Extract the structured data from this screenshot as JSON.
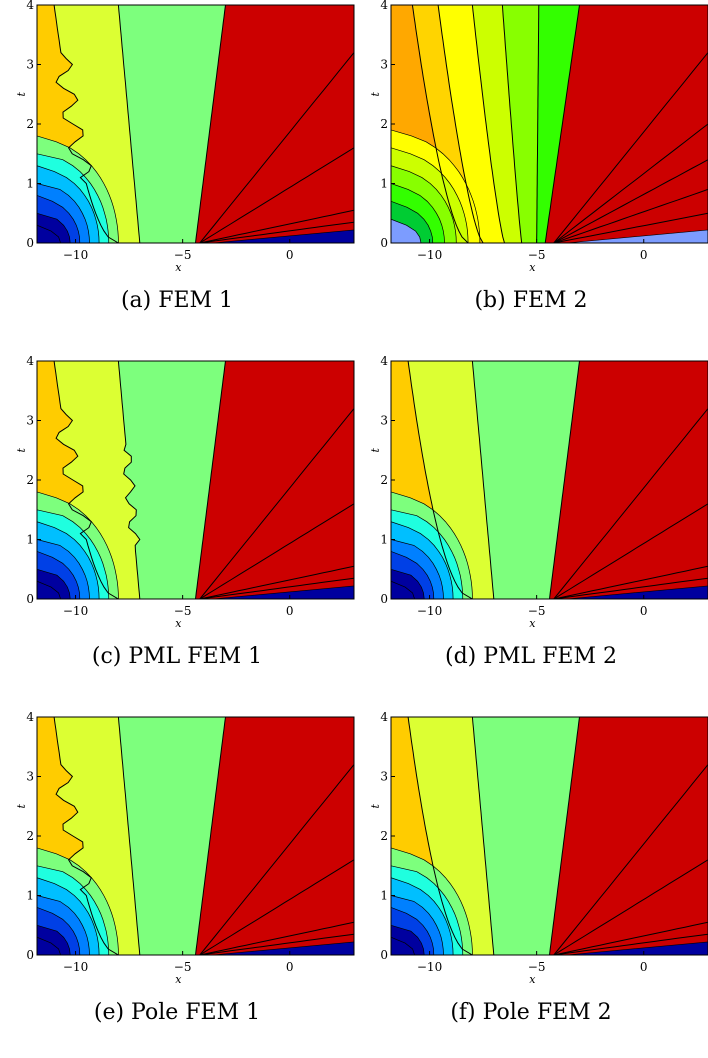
{
  "chart_data": [
    {
      "type": "contour",
      "id": "a",
      "caption": "(a) FEM 1",
      "xlabel": "x",
      "ylabel": "t",
      "xlim": [
        -11.8,
        3
      ],
      "ylim": [
        0,
        4
      ],
      "xticks": [
        {
          "v": -10,
          "label": "−10"
        },
        {
          "v": -5,
          "label": "−5"
        },
        {
          "v": 0,
          "label": "0"
        }
      ],
      "yticks": [
        0,
        1,
        2,
        3,
        4
      ],
      "variant": "fem1"
    },
    {
      "type": "contour",
      "id": "b",
      "caption": "(b) FEM 2",
      "xlabel": "x",
      "ylabel": "t",
      "xlim": [
        -11.8,
        3
      ],
      "ylim": [
        0,
        4
      ],
      "xticks": [
        {
          "v": -10,
          "label": "−10"
        },
        {
          "v": -5,
          "label": "−5"
        },
        {
          "v": 0,
          "label": "0"
        }
      ],
      "yticks": [
        0,
        1,
        2,
        3,
        4
      ],
      "variant": "fem2"
    },
    {
      "type": "contour",
      "id": "c",
      "caption": "(c) PML FEM 1",
      "xlabel": "x",
      "ylabel": "t",
      "xlim": [
        -11.8,
        3
      ],
      "ylim": [
        0,
        4
      ],
      "xticks": [
        {
          "v": -10,
          "label": "−10"
        },
        {
          "v": -5,
          "label": "−5"
        },
        {
          "v": 0,
          "label": "0"
        }
      ],
      "yticks": [
        0,
        1,
        2,
        3,
        4
      ],
      "variant": "pml1"
    },
    {
      "type": "contour",
      "id": "d",
      "caption": "(d) PML FEM 2",
      "xlabel": "x",
      "ylabel": "t",
      "xlim": [
        -11.8,
        3
      ],
      "ylim": [
        0,
        4
      ],
      "xticks": [
        {
          "v": -10,
          "label": "−10"
        },
        {
          "v": -5,
          "label": "−5"
        },
        {
          "v": 0,
          "label": "0"
        }
      ],
      "yticks": [
        0,
        1,
        2,
        3,
        4
      ],
      "variant": "smooth"
    },
    {
      "type": "contour",
      "id": "e",
      "caption": "(e) Pole FEM 1",
      "xlabel": "x",
      "ylabel": "t",
      "xlim": [
        -11.8,
        3
      ],
      "ylim": [
        0,
        4
      ],
      "xticks": [
        {
          "v": -10,
          "label": "−10"
        },
        {
          "v": -5,
          "label": "−5"
        },
        {
          "v": 0,
          "label": "0"
        }
      ],
      "yticks": [
        0,
        1,
        2,
        3,
        4
      ],
      "variant": "fem1"
    },
    {
      "type": "contour",
      "id": "f",
      "caption": "(f) Pole FEM 2",
      "xlabel": "x",
      "ylabel": "t",
      "xlim": [
        -11.8,
        3
      ],
      "ylim": [
        0,
        4
      ],
      "xticks": [
        {
          "v": -10,
          "label": "−10"
        },
        {
          "v": -5,
          "label": "−5"
        },
        {
          "v": 0,
          "label": "0"
        }
      ],
      "yticks": [
        0,
        1,
        2,
        3,
        4
      ],
      "variant": "smooth"
    }
  ],
  "colors": {
    "standard": [
      "#cc0000",
      "#ff2200",
      "#ff7300",
      "#ffcc00",
      "#dcff33",
      "#7dff7d",
      "#1fffdf",
      "#00bfff",
      "#0080ff",
      "#0040e6",
      "#00009f"
    ],
    "fem2": [
      "#cc0000",
      "#ff0000",
      "#ff4a00",
      "#ff7f00",
      "#ffa800",
      "#ffd400",
      "#ffff00",
      "#ccff00",
      "#88ff00",
      "#33ff00",
      "#00cc33",
      "#7c9cff"
    ]
  }
}
